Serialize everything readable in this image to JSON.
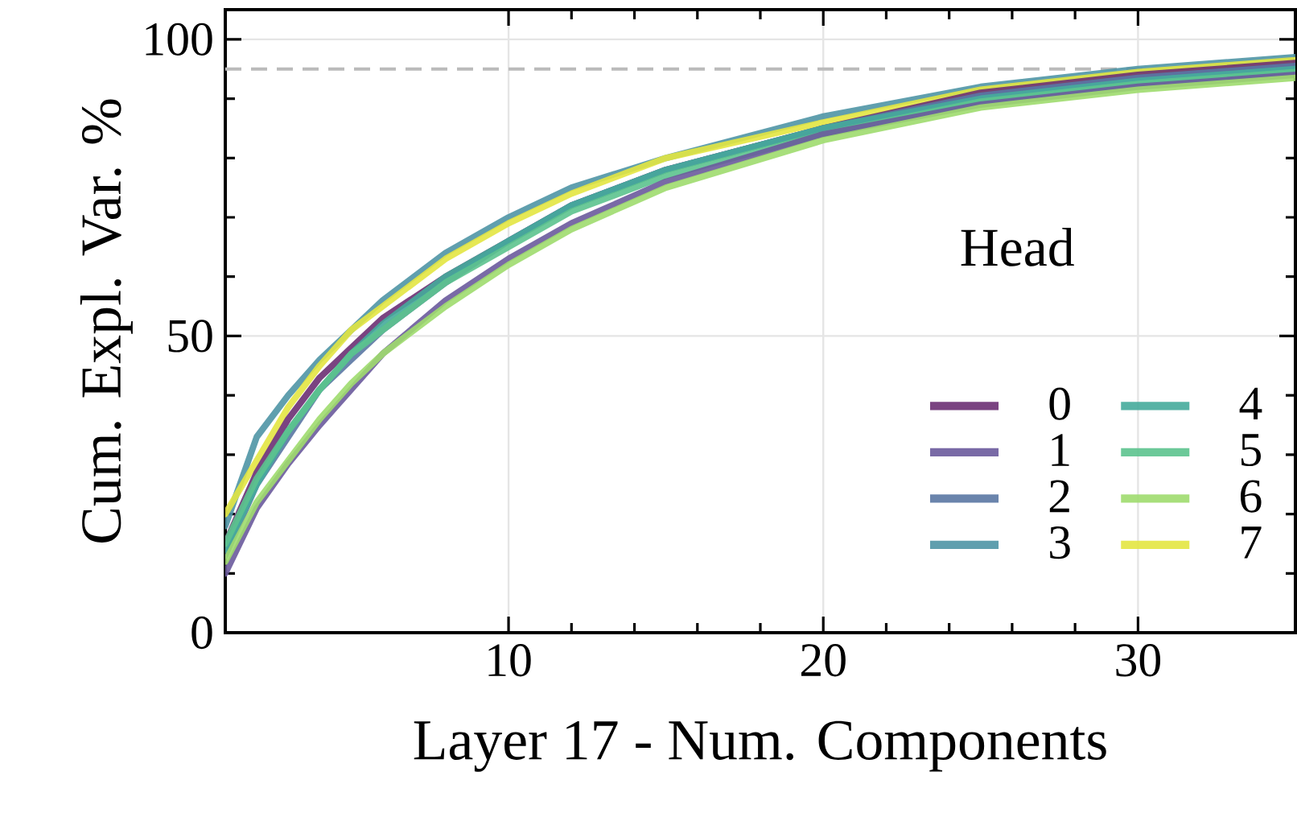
{
  "chart_data": {
    "type": "line",
    "xlabel": "Layer 17 - Num. Components",
    "ylabel": "Cum. Expl. Var. %",
    "legend_title": "Head",
    "legend": "bottom right",
    "grid": true,
    "x": [
      1,
      2,
      3,
      4,
      5,
      6,
      8,
      10,
      12,
      15,
      20,
      25,
      30,
      35
    ],
    "xlim": [
      1,
      35
    ],
    "xticks": [
      10,
      20,
      30
    ],
    "ylim": [
      0,
      105
    ],
    "yticks": [
      0,
      50,
      100
    ],
    "ref_lines": [
      {
        "axis": "y",
        "value": 95,
        "color": "#bbbbbb",
        "line_style": "dashed"
      }
    ],
    "series": [
      {
        "name": "0",
        "color": "#6b2f73",
        "values": [
          15,
          27,
          36,
          43,
          48,
          53,
          60,
          66,
          72,
          78,
          85,
          91,
          94,
          96
        ]
      },
      {
        "name": "1",
        "color": "#6a5a9c",
        "values": [
          10,
          21,
          28.5,
          35,
          41,
          47,
          56,
          63,
          69,
          76,
          84,
          89,
          92,
          94
        ]
      },
      {
        "name": "2",
        "color": "#5a77a3",
        "values": [
          13,
          25,
          33,
          41,
          46,
          51,
          59,
          66,
          72,
          78,
          85,
          90.5,
          93.5,
          95.5
        ]
      },
      {
        "name": "3",
        "color": "#4f95a5",
        "values": [
          18,
          33,
          40,
          46,
          51,
          56,
          64,
          70,
          75,
          80,
          87,
          92,
          95,
          97
        ]
      },
      {
        "name": "4",
        "color": "#45ab9b",
        "values": [
          14,
          25,
          34,
          41,
          47,
          52,
          60,
          66,
          72,
          78,
          85,
          90,
          93,
          95
        ]
      },
      {
        "name": "5",
        "color": "#5cc38e",
        "values": [
          15,
          26,
          34,
          41,
          47,
          51,
          59,
          65,
          71,
          77,
          84,
          89.5,
          92.5,
          94.5
        ]
      },
      {
        "name": "6",
        "color": "#9fdb6e",
        "values": [
          12,
          22,
          29,
          36,
          42,
          47,
          55,
          62,
          68,
          75,
          83,
          88.5,
          91.5,
          93.5
        ]
      },
      {
        "name": "7",
        "color": "#e3e541",
        "values": [
          20,
          29,
          38,
          45,
          51,
          55,
          63,
          69,
          74,
          80,
          86,
          91.5,
          94.5,
          96.5
        ]
      }
    ]
  }
}
